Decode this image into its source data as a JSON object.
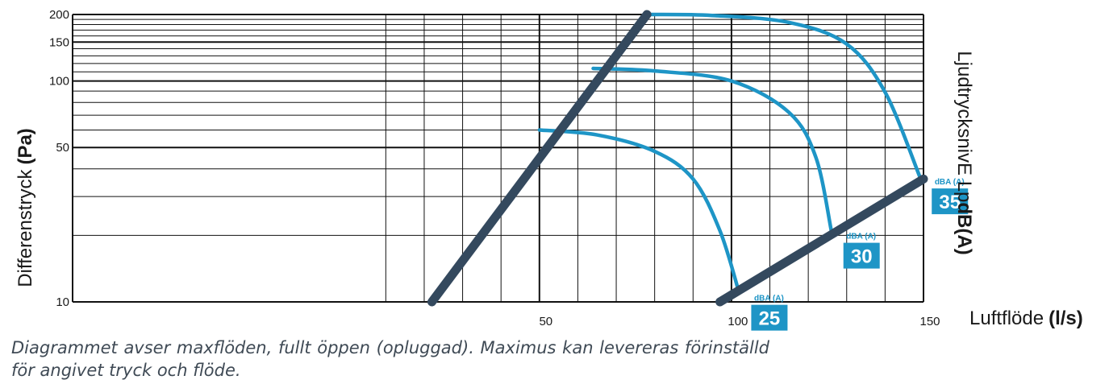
{
  "chart_data": {
    "type": "line",
    "xlabel": "Luftflöde",
    "xlabel_unit": "(l/s)",
    "ylabel": "Differenstryck",
    "ylabel_unit": "(Pa)",
    "y2label": "LjudtrycksnivΕ Lp",
    "y2label_unit": "dB(A)",
    "x_ticks": [
      "50",
      "100",
      "150"
    ],
    "y_ticks": [
      "10",
      "50",
      "100",
      "150",
      "200"
    ],
    "xlim": [
      0,
      150
    ],
    "ylim": [
      10,
      200
    ],
    "y_scale": "log",
    "grid": true,
    "accent_color": "#1e95c6",
    "line_color": "#34495e",
    "limit_lines": [
      {
        "x": [
          22,
          78
        ],
        "y": [
          10,
          200
        ]
      },
      {
        "x": [
          97,
          150
        ],
        "y": [
          10,
          36
        ]
      }
    ],
    "series": [
      {
        "name": "25",
        "x": [
          50,
          65,
          80,
          90,
          97,
          102
        ],
        "y": [
          60,
          57,
          48,
          36,
          21,
          11
        ]
      },
      {
        "name": "30",
        "x": [
          64,
          80,
          100,
          115,
          122,
          126
        ],
        "y": [
          114,
          111,
          100,
          72,
          45,
          21
        ]
      },
      {
        "name": "35",
        "x": [
          78,
          95,
          115,
          130,
          140,
          149
        ],
        "y": [
          200,
          198,
          184,
          147,
          89,
          37
        ]
      }
    ],
    "badges": [
      {
        "label": "25",
        "unit": "dBA (A)"
      },
      {
        "label": "30",
        "unit": "dBA (A)"
      },
      {
        "label": "35",
        "unit": "dBA (A)"
      }
    ]
  },
  "caption": "Diagrammet avser maxflöden, fullt öppen (opluggad). Maximus kan levereras förinställd för angivet tryck och flöde."
}
